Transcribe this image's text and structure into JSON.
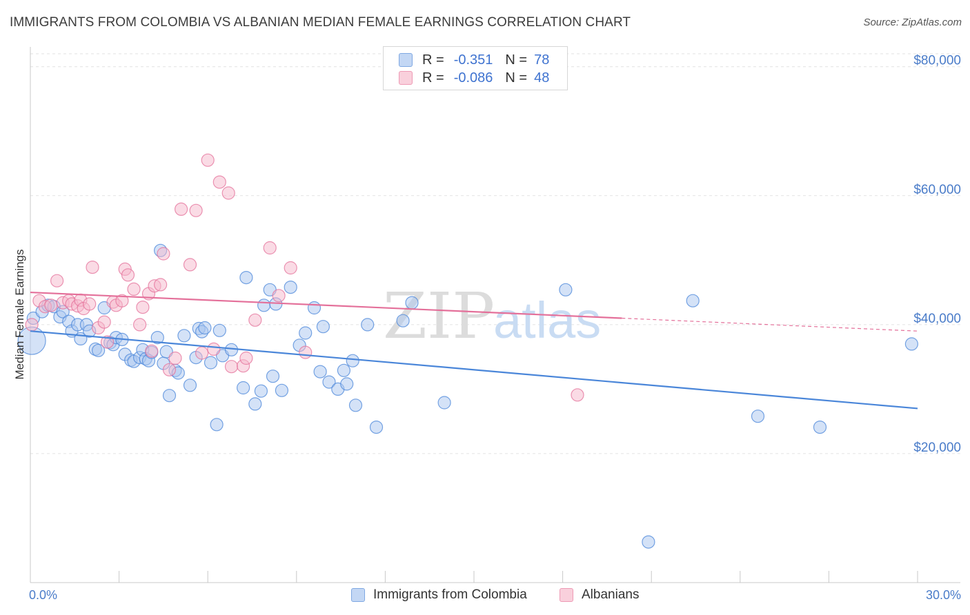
{
  "header": {
    "title": "IMMIGRANTS FROM COLOMBIA VS ALBANIAN MEDIAN FEMALE EARNINGS CORRELATION CHART",
    "source": "Source: ZipAtlas.com"
  },
  "watermark": {
    "zip": "ZIP",
    "atlas": "atlas"
  },
  "legend": {
    "rows": [
      {
        "r_label": "R =",
        "r_value": "-0.351",
        "n_label": "N =",
        "n_value": "78",
        "color": "#a9c6ef"
      },
      {
        "r_label": "R =",
        "r_value": "-0.086",
        "n_label": "N =",
        "n_value": "48",
        "color": "#f6b8cb"
      }
    ]
  },
  "chart_data": {
    "type": "scatter",
    "title": "IMMIGRANTS FROM COLOMBIA VS ALBANIAN MEDIAN FEMALE EARNINGS CORRELATION CHART",
    "xlabel": "",
    "ylabel": "Median Female Earnings",
    "xlim": [
      0,
      30
    ],
    "ylim": [
      0,
      82000
    ],
    "x_tick_labels": [
      "0.0%",
      "30.0%"
    ],
    "y_tick_labels": [
      "$20,000",
      "$40,000",
      "$60,000",
      "$80,000"
    ],
    "y_ticks": [
      20000,
      40000,
      60000,
      80000
    ],
    "grid": true,
    "legend_position": "top-center",
    "series": [
      {
        "name": "Immigrants from Colombia",
        "color": "#4a86d9",
        "fill": "#a9c6ef",
        "trend": {
          "x": [
            0.0,
            30.0
          ],
          "y": [
            39000,
            27000
          ],
          "dashed_from": null
        },
        "points": [
          [
            0.05,
            37500
          ],
          [
            0.1,
            41000
          ],
          [
            0.4,
            42000
          ],
          [
            0.6,
            43000
          ],
          [
            0.8,
            42800
          ],
          [
            1.0,
            41200
          ],
          [
            1.1,
            42000
          ],
          [
            1.3,
            40500
          ],
          [
            1.4,
            39000
          ],
          [
            1.6,
            40000
          ],
          [
            1.7,
            37800
          ],
          [
            1.9,
            40000
          ],
          [
            2.0,
            39000
          ],
          [
            2.2,
            36200
          ],
          [
            2.3,
            36000
          ],
          [
            2.5,
            42600
          ],
          [
            2.7,
            37200
          ],
          [
            2.8,
            36900
          ],
          [
            2.9,
            38000
          ],
          [
            3.1,
            37700
          ],
          [
            3.2,
            35400
          ],
          [
            3.4,
            34500
          ],
          [
            3.5,
            34300
          ],
          [
            3.7,
            34900
          ],
          [
            3.8,
            36100
          ],
          [
            3.9,
            34700
          ],
          [
            4.0,
            34400
          ],
          [
            4.1,
            35700
          ],
          [
            4.3,
            38000
          ],
          [
            4.4,
            51500
          ],
          [
            4.5,
            34000
          ],
          [
            4.6,
            35800
          ],
          [
            4.7,
            29000
          ],
          [
            4.9,
            32900
          ],
          [
            5.0,
            32500
          ],
          [
            5.2,
            38300
          ],
          [
            5.4,
            30600
          ],
          [
            5.6,
            34900
          ],
          [
            5.7,
            39400
          ],
          [
            5.8,
            38900
          ],
          [
            5.9,
            39500
          ],
          [
            6.1,
            34100
          ],
          [
            6.3,
            24500
          ],
          [
            6.4,
            39100
          ],
          [
            6.5,
            35200
          ],
          [
            6.8,
            36100
          ],
          [
            7.2,
            30200
          ],
          [
            7.3,
            47300
          ],
          [
            7.6,
            27700
          ],
          [
            7.8,
            29700
          ],
          [
            7.9,
            43000
          ],
          [
            8.1,
            45400
          ],
          [
            8.2,
            32000
          ],
          [
            8.3,
            43200
          ],
          [
            8.5,
            29800
          ],
          [
            8.8,
            45800
          ],
          [
            9.1,
            36800
          ],
          [
            9.3,
            38700
          ],
          [
            9.6,
            42600
          ],
          [
            9.8,
            32700
          ],
          [
            9.9,
            39700
          ],
          [
            10.1,
            31100
          ],
          [
            10.4,
            30000
          ],
          [
            10.6,
            32900
          ],
          [
            10.7,
            30800
          ],
          [
            10.9,
            34400
          ],
          [
            11.0,
            27500
          ],
          [
            11.4,
            40000
          ],
          [
            11.7,
            24100
          ],
          [
            12.6,
            40600
          ],
          [
            12.9,
            43400
          ],
          [
            14.0,
            27900
          ],
          [
            18.1,
            45400
          ],
          [
            20.9,
            6300
          ],
          [
            22.4,
            43700
          ],
          [
            24.6,
            25800
          ],
          [
            26.7,
            24100
          ],
          [
            29.8,
            37000
          ]
        ]
      },
      {
        "name": "Albanians",
        "color": "#e4709a",
        "fill": "#f6b8cb",
        "trend": {
          "x": [
            0.0,
            30.0
          ],
          "y": [
            45000,
            39000
          ],
          "dashed_from": 20.0
        },
        "points": [
          [
            0.05,
            40000
          ],
          [
            0.3,
            43700
          ],
          [
            0.5,
            42800
          ],
          [
            0.7,
            43000
          ],
          [
            0.9,
            46800
          ],
          [
            1.1,
            43400
          ],
          [
            1.3,
            43700
          ],
          [
            1.4,
            43200
          ],
          [
            1.6,
            42900
          ],
          [
            1.7,
            43800
          ],
          [
            1.8,
            42500
          ],
          [
            2.0,
            43200
          ],
          [
            2.1,
            48900
          ],
          [
            2.3,
            39500
          ],
          [
            2.5,
            40400
          ],
          [
            2.6,
            37300
          ],
          [
            2.8,
            43500
          ],
          [
            2.9,
            43000
          ],
          [
            3.1,
            43700
          ],
          [
            3.2,
            48600
          ],
          [
            3.3,
            47700
          ],
          [
            3.5,
            45500
          ],
          [
            3.7,
            40000
          ],
          [
            3.8,
            42700
          ],
          [
            4.0,
            44800
          ],
          [
            4.1,
            35900
          ],
          [
            4.2,
            46000
          ],
          [
            4.4,
            46200
          ],
          [
            4.5,
            51000
          ],
          [
            4.7,
            33000
          ],
          [
            4.9,
            34800
          ],
          [
            5.1,
            57900
          ],
          [
            5.4,
            49300
          ],
          [
            5.6,
            57700
          ],
          [
            5.8,
            35600
          ],
          [
            6.0,
            65500
          ],
          [
            6.2,
            36200
          ],
          [
            6.4,
            62100
          ],
          [
            6.7,
            60400
          ],
          [
            6.8,
            33500
          ],
          [
            7.2,
            33600
          ],
          [
            7.3,
            34800
          ],
          [
            7.6,
            40700
          ],
          [
            8.1,
            51900
          ],
          [
            8.4,
            44500
          ],
          [
            8.8,
            48800
          ],
          [
            9.3,
            35700
          ],
          [
            18.5,
            29100
          ]
        ]
      }
    ]
  },
  "bottom_legend": [
    {
      "label": "Immigrants from Colombia",
      "color": "#a9c6ef"
    },
    {
      "label": "Albanians",
      "color": "#f6b8cb"
    }
  ]
}
